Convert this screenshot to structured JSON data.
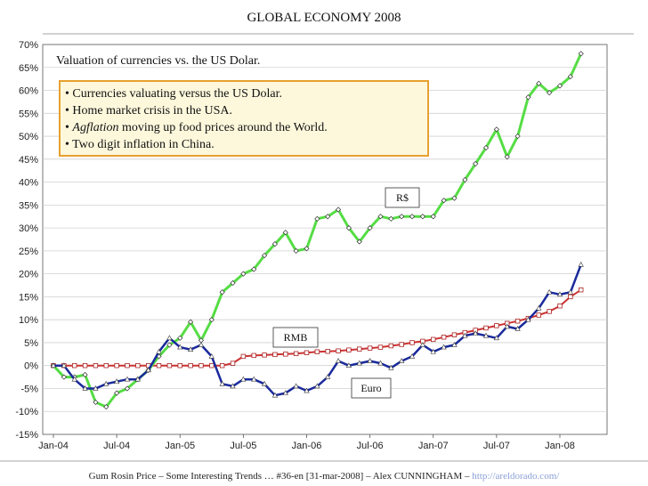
{
  "title": "GLOBAL ECONOMY 2008",
  "subtitle": "Valuation of currencies vs. the US Dolar.",
  "bullets": [
    {
      "prefix": "• ",
      "italic": "",
      "text": "Currencies valuating versus the US Dolar."
    },
    {
      "prefix": "• ",
      "italic": "",
      "text": "Home market crisis in the USA."
    },
    {
      "prefix": "• ",
      "italic": "Agflation",
      "text": " moving up food prices around the World."
    },
    {
      "prefix": "• ",
      "italic": "",
      "text": "Two digit inflation in China."
    }
  ],
  "footer": {
    "text": "Gum Rosin Price – Some Interesting Trends … #36-en [31-mar-2008] – Alex CUNNINGHAM – ",
    "link": "http://areldorado.com/"
  },
  "colors": {
    "brl": "#55dd44",
    "eur": "#1a2a9c",
    "cny": "#cc3333",
    "box_border": "#e8a030",
    "box_fill": "#fdf8dc",
    "footer_link": "#8aa0d8"
  },
  "chart_data": {
    "type": "line",
    "title": "GLOBAL ECONOMY 2008",
    "xlabel": "",
    "ylabel": "",
    "ylim": [
      -15,
      70
    ],
    "y_ticks": [
      -15,
      -10,
      -5,
      0,
      5,
      10,
      15,
      20,
      25,
      30,
      35,
      40,
      45,
      50,
      55,
      60,
      65,
      70
    ],
    "y_tick_labels": [
      "-15%",
      "-10%",
      "-5%",
      "0%",
      "5%",
      "10%",
      "15%",
      "20%",
      "25%",
      "30%",
      "35%",
      "40%",
      "45%",
      "50%",
      "55%",
      "60%",
      "65%",
      "70%"
    ],
    "x_ticks": [
      0,
      6,
      12,
      18,
      24,
      30,
      36,
      42,
      48
    ],
    "x_tick_labels": [
      "Jan-04",
      "Jul-04",
      "Jan-05",
      "Jul-05",
      "Jan-06",
      "Jul-06",
      "Jan-07",
      "Jul-07",
      "Jan-08"
    ],
    "x_range": [
      0,
      51
    ],
    "series": [
      {
        "name": "R$",
        "x": [
          0,
          1,
          2,
          3,
          4,
          5,
          6,
          7,
          8,
          9,
          10,
          11,
          12,
          13,
          14,
          15,
          16,
          17,
          18,
          19,
          20,
          21,
          22,
          23,
          24,
          25,
          26,
          27,
          28,
          29,
          30,
          31,
          32,
          33,
          34,
          35,
          36,
          37,
          38,
          39,
          40,
          41,
          42,
          43,
          44,
          45,
          46,
          47,
          48,
          49,
          50
        ],
        "values": [
          0,
          -2.5,
          -2.5,
          -2,
          -8,
          -9,
          -6,
          -5,
          -3,
          -1,
          2,
          4.5,
          6,
          9.5,
          5.5,
          10,
          16,
          18,
          20,
          21,
          24,
          26.5,
          29,
          25,
          25.5,
          32,
          32.5,
          34,
          30,
          27,
          30,
          32.5,
          32,
          32.5,
          32.5,
          32.5,
          32.5,
          36,
          36.5,
          40.5,
          44,
          47.5,
          51.5,
          45.5,
          50,
          58.5,
          61.5,
          59.5,
          61,
          63,
          68
        ]
      },
      {
        "name": "Euro",
        "x": [
          0,
          1,
          2,
          3,
          4,
          5,
          6,
          7,
          8,
          9,
          10,
          11,
          12,
          13,
          14,
          15,
          16,
          17,
          18,
          19,
          20,
          21,
          22,
          23,
          24,
          25,
          26,
          27,
          28,
          29,
          30,
          31,
          32,
          33,
          34,
          35,
          36,
          37,
          38,
          39,
          40,
          41,
          42,
          43,
          44,
          45,
          46,
          47,
          48,
          49,
          50
        ],
        "values": [
          0,
          0,
          -3,
          -5,
          -5,
          -4,
          -3.5,
          -3,
          -3,
          -1,
          3,
          6,
          4,
          3.5,
          4.5,
          2,
          -4,
          -4.5,
          -3,
          -3,
          -4,
          -6.5,
          -6,
          -4.5,
          -5.5,
          -4.5,
          -2.5,
          1,
          0,
          0.5,
          1,
          0.5,
          -0.5,
          1,
          2,
          4.5,
          3,
          4,
          4.5,
          6.5,
          7,
          6.5,
          6,
          8.5,
          8,
          10,
          12.5,
          16,
          15.5,
          16,
          22
        ]
      },
      {
        "name": "RMB",
        "x": [
          0,
          1,
          2,
          3,
          4,
          5,
          6,
          7,
          8,
          9,
          10,
          11,
          12,
          13,
          14,
          15,
          16,
          17,
          18,
          19,
          20,
          21,
          22,
          23,
          24,
          25,
          26,
          27,
          28,
          29,
          30,
          31,
          32,
          33,
          34,
          35,
          36,
          37,
          38,
          39,
          40,
          41,
          42,
          43,
          44,
          45,
          46,
          47,
          48,
          49,
          50
        ],
        "values": [
          0,
          0,
          0,
          0,
          0,
          0,
          0,
          0,
          0,
          0,
          0,
          0,
          0,
          0,
          0,
          0,
          0,
          0.5,
          2,
          2.2,
          2.3,
          2.4,
          2.5,
          2.6,
          2.8,
          3,
          3.1,
          3.2,
          3.4,
          3.6,
          3.8,
          4,
          4.3,
          4.6,
          5,
          5.3,
          5.7,
          6.2,
          6.7,
          7.2,
          7.7,
          8.2,
          8.7,
          9.2,
          9.7,
          10.3,
          11,
          11.8,
          13,
          15,
          16.5
        ]
      }
    ],
    "annotations": [
      {
        "text": "R$",
        "series": "R$"
      },
      {
        "text": "RMB",
        "series": "RMB"
      },
      {
        "text": "Euro",
        "series": "Euro"
      }
    ]
  }
}
